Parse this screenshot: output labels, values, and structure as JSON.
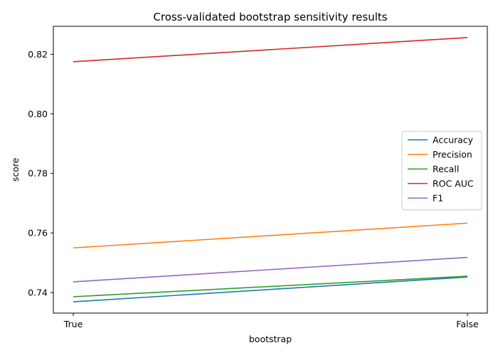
{
  "chart_data": {
    "type": "line",
    "title": "Cross-validated bootstrap sensitivity results",
    "xlabel": "bootstrap",
    "ylabel": "score",
    "categories": [
      "True",
      "False"
    ],
    "ylim": [
      0.7331,
      0.8294
    ],
    "yticks": [
      0.74,
      0.76,
      0.78,
      0.8,
      0.82
    ],
    "ytick_labels": [
      "0.74",
      "0.76",
      "0.78",
      "0.80",
      "0.82"
    ],
    "grid": false,
    "legend_position": "center-right",
    "series": [
      {
        "name": "Accuracy",
        "color": "#1f77b4",
        "values": [
          0.7369,
          0.7452
        ]
      },
      {
        "name": "Precision",
        "color": "#ff7f0e",
        "values": [
          0.755,
          0.7633
        ]
      },
      {
        "name": "Recall",
        "color": "#2ca02c",
        "values": [
          0.7386,
          0.7455
        ]
      },
      {
        "name": "ROC AUC",
        "color": "#d62728",
        "values": [
          0.8175,
          0.8256
        ]
      },
      {
        "name": "F1",
        "color": "#9467bd",
        "values": [
          0.7436,
          0.7518
        ]
      }
    ]
  }
}
